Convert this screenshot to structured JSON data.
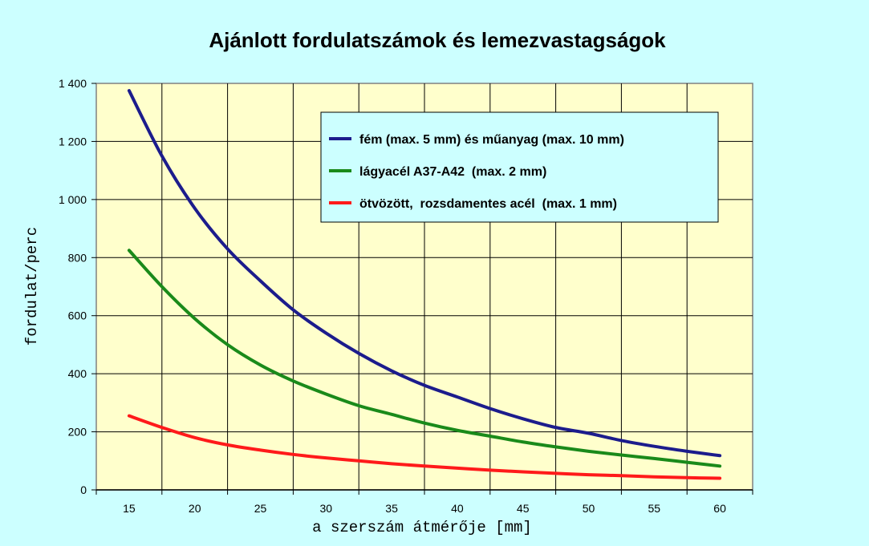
{
  "chart_data": {
    "type": "line",
    "title": "Ajánlott fordulatszámok és lemezvastagságok",
    "xlabel": "a szerszám átmérője [mm]",
    "ylabel": "fordulat/perc",
    "xlim": [
      12.5,
      62.5
    ],
    "ylim": [
      0,
      1400
    ],
    "xticks": [
      15,
      20,
      25,
      30,
      35,
      40,
      45,
      50,
      55,
      60
    ],
    "xtick_labels": [
      "15",
      "20",
      "25",
      "30",
      "35",
      "40",
      "45",
      "50",
      "55",
      "60"
    ],
    "yticks": [
      0,
      200,
      400,
      600,
      800,
      1000,
      1200,
      1400
    ],
    "ytick_labels": [
      "0",
      "200",
      "400",
      "600",
      "800",
      "1 000",
      "1 200",
      "1 400"
    ],
    "grid": true,
    "legend_position": "top-right",
    "background_color": "#ffffcc",
    "x": [
      15,
      17.5,
      20,
      22.5,
      25,
      27.5,
      30,
      32.5,
      35,
      37.5,
      40,
      42.5,
      45,
      47.5,
      50,
      52.5,
      55,
      57.5,
      60
    ],
    "series": [
      {
        "name": "fém (max. 5 mm) és műanyag (max. 10 mm)",
        "color": "#1c1c8c",
        "values": [
          1375,
          1150,
          970,
          830,
          720,
          620,
          540,
          470,
          410,
          360,
          320,
          280,
          245,
          215,
          195,
          170,
          150,
          133,
          118
        ]
      },
      {
        "name": "lágyacél A37-A42  (max. 2 mm)",
        "color": "#1a8a1a",
        "values": [
          825,
          700,
          590,
          500,
          430,
          375,
          330,
          290,
          260,
          230,
          205,
          185,
          165,
          148,
          133,
          120,
          108,
          95,
          82
        ]
      },
      {
        "name": "ötvözött,  rozsdamentes acél  (max. 1 mm)",
        "color": "#ff1a1a",
        "values": [
          255,
          215,
          180,
          155,
          137,
          122,
          110,
          100,
          90,
          82,
          75,
          68,
          62,
          57,
          52,
          49,
          45,
          42,
          40
        ]
      }
    ]
  }
}
